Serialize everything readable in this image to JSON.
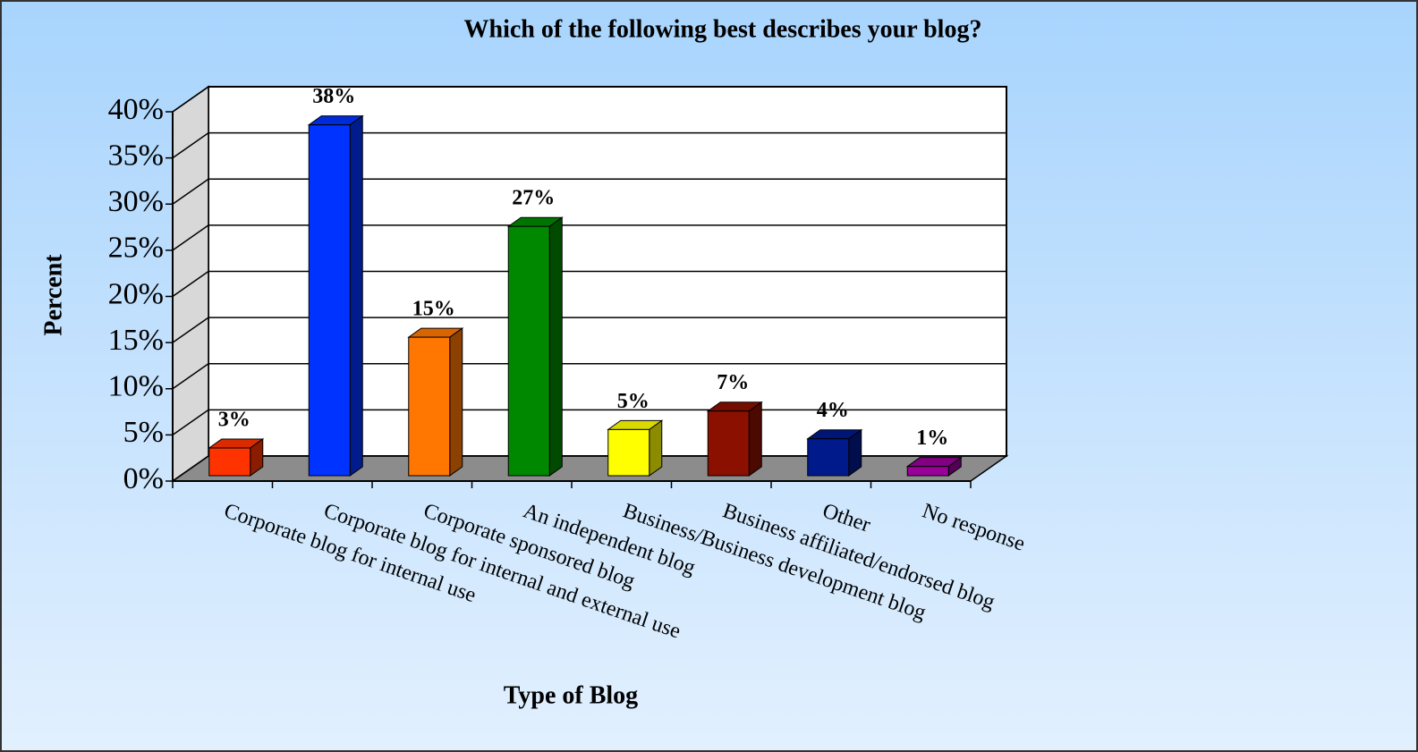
{
  "chart_data": {
    "type": "bar3d",
    "title": "Which of the following best describes your blog?",
    "x_label": "Type of Blog",
    "y_label": "Percent",
    "categories": [
      "Corporate blog for internal use",
      "Corporate blog for internal and external use",
      "Corporate sponsored blog",
      "An independent blog",
      "Business/Business development blog",
      "Business affiliated/endorsed blog",
      "Other",
      "No response"
    ],
    "values": [
      3,
      38,
      15,
      27,
      5,
      7,
      4,
      1
    ],
    "value_labels": [
      "3%",
      "38%",
      "15%",
      "27%",
      "5%",
      "7%",
      "4%",
      "1%"
    ],
    "colors": [
      "#ff3300",
      "#0033ff",
      "#ff7700",
      "#008800",
      "#ffff00",
      "#8b1000",
      "#001a8c",
      "#990099"
    ],
    "ylim": [
      0,
      40
    ],
    "yticks": [
      {
        "value": 0,
        "label": "0%"
      },
      {
        "value": 5,
        "label": "5%"
      },
      {
        "value": 10,
        "label": "10%"
      },
      {
        "value": 15,
        "label": "15%"
      },
      {
        "value": 20,
        "label": "20%"
      },
      {
        "value": 25,
        "label": "25%"
      },
      {
        "value": 30,
        "label": "30%"
      },
      {
        "value": 35,
        "label": "35%"
      },
      {
        "value": 40,
        "label": "40%"
      }
    ],
    "grid": true
  }
}
